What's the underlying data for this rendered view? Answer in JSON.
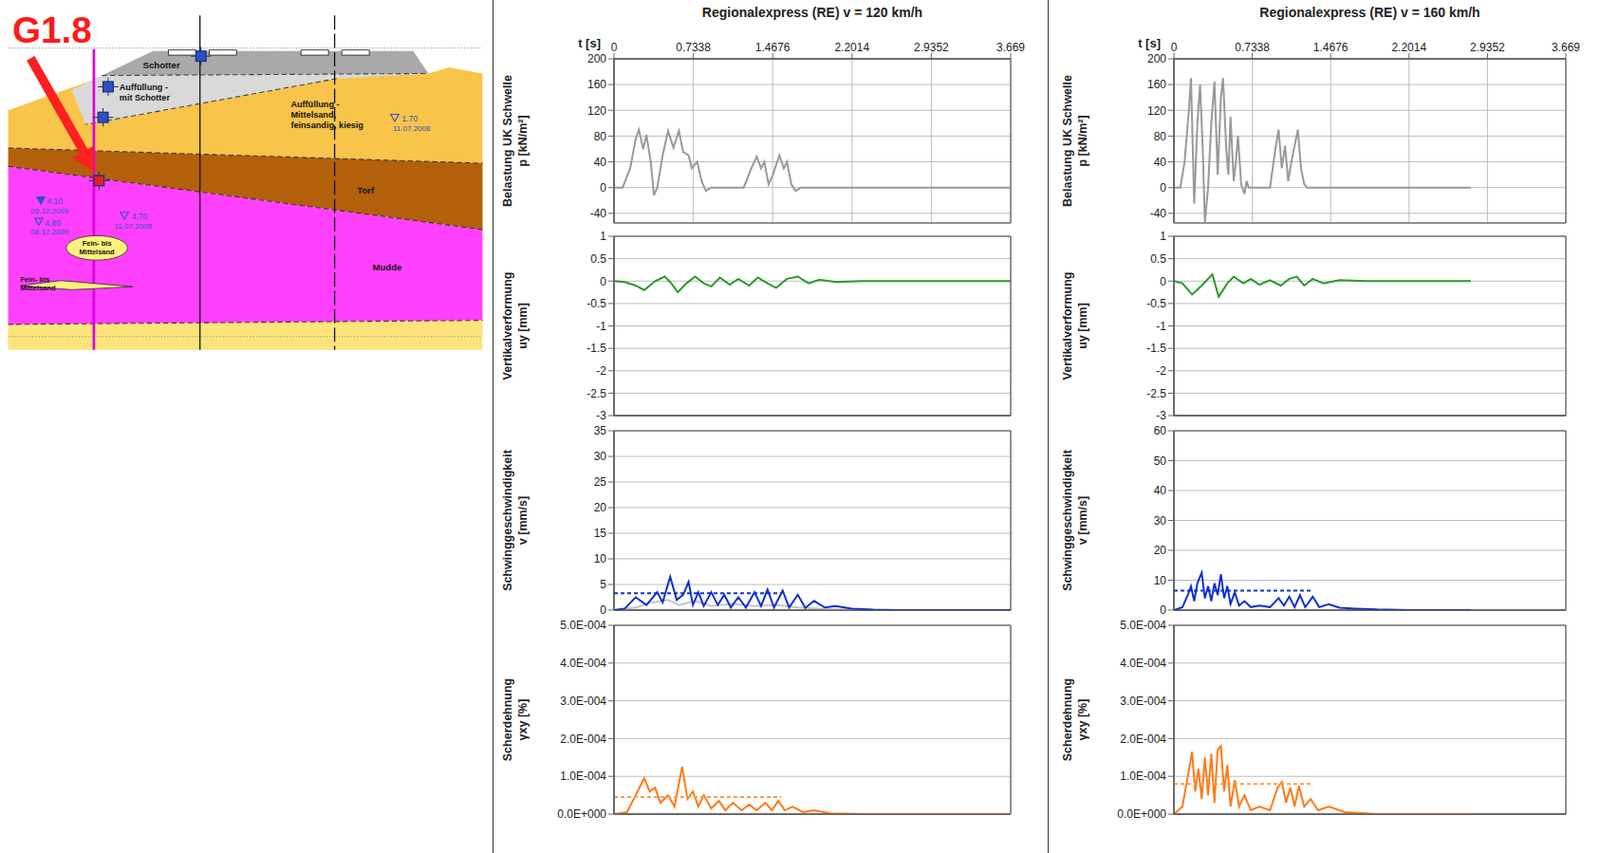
{
  "diagram": {
    "title": "G1.8",
    "layer_labels": [
      [
        "Schotter"
      ],
      [
        "Auffüllung -",
        "mit Schotter"
      ],
      [
        "Auffüllung -",
        "Mittelsand,",
        "feinsandig, kiesig"
      ],
      [
        "Torf"
      ],
      [
        "Mudde"
      ],
      [
        "Fein- bis",
        "Mittelsand"
      ],
      [
        "Fein- bis",
        "Mittelsand"
      ]
    ],
    "water_levels": [
      {
        "level": "1.70",
        "date": "11.07.2008"
      },
      {
        "level": "4,10",
        "date": "09.12.2009"
      },
      {
        "level": "4,80",
        "date": "08.12.2009"
      },
      {
        "level": "4,70",
        "date": "11.07.2008"
      }
    ]
  },
  "chart_data": [
    {
      "type": "line",
      "title": "Regionalexpress (RE) v = 120 km/h",
      "xlabel": "t [s]",
      "ylabel": [
        "Belastung UK Schwelle",
        "p [kN/m²]"
      ],
      "xlim": [
        0,
        3.669
      ],
      "xticks": [
        0,
        0.7338,
        1.4676,
        2.2014,
        2.9352,
        3.669
      ],
      "ylim": [
        -55,
        200
      ],
      "yticks": [
        -40,
        0,
        40,
        80,
        120,
        160,
        200
      ],
      "grid": true,
      "tick_labels": true,
      "series": [
        {
          "color": "#999999",
          "line_style": "solid",
          "x": [
            0,
            0.08,
            0.15,
            0.2,
            0.23,
            0.27,
            0.3,
            0.34,
            0.37,
            0.4,
            0.45,
            0.5,
            0.55,
            0.6,
            0.64,
            0.69,
            0.72,
            0.77,
            0.81,
            0.85,
            0.9,
            1.2,
            1.27,
            1.32,
            1.36,
            1.39,
            1.43,
            1.47,
            1.53,
            1.57,
            1.6,
            1.64,
            1.68,
            1.73,
            3.669
          ],
          "values": [
            0,
            0,
            30,
            75,
            90,
            60,
            82,
            40,
            -12,
            0,
            50,
            88,
            62,
            88,
            55,
            50,
            30,
            40,
            10,
            -5,
            0,
            0,
            30,
            48,
            30,
            40,
            5,
            20,
            50,
            30,
            40,
            5,
            -5,
            0,
            0
          ]
        }
      ]
    },
    {
      "type": "line",
      "ylabel": [
        "Vertikalverformung",
        "uy [mm]"
      ],
      "xlim": [
        0,
        3.669
      ],
      "xticks": [
        0,
        0.7338,
        1.4676,
        2.2014,
        2.9352,
        3.669
      ],
      "ylim": [
        -3,
        1
      ],
      "yticks": [
        -3,
        -2.5,
        -2,
        -1.5,
        -1,
        -0.5,
        0,
        0.5,
        1
      ],
      "grid": true,
      "tick_labels": "y",
      "series": [
        {
          "color": "#2a9a2a",
          "line_style": "solid",
          "x": [
            0,
            0.1,
            0.2,
            0.28,
            0.38,
            0.47,
            0.53,
            0.59,
            0.67,
            0.75,
            0.83,
            0.9,
            0.98,
            1.07,
            1.15,
            1.25,
            1.33,
            1.42,
            1.5,
            1.6,
            1.7,
            1.8,
            1.9,
            2.05,
            2.3,
            3.669
          ],
          "values": [
            0,
            -0.02,
            -0.1,
            -0.2,
            0,
            0.1,
            -0.05,
            -0.25,
            -0.05,
            0.1,
            -0.05,
            -0.12,
            0.08,
            -0.08,
            0.05,
            -0.1,
            0.08,
            -0.05,
            -0.15,
            0.05,
            0.1,
            -0.05,
            0.03,
            -0.02,
            0,
            0
          ]
        }
      ]
    },
    {
      "type": "line",
      "ylabel": [
        "Schwinggeschwindigkeit",
        "v [mm/s]"
      ],
      "xlim": [
        0,
        3.669
      ],
      "xticks": [
        0,
        0.7338,
        1.4676,
        2.2014,
        2.9352,
        3.669
      ],
      "ylim": [
        0,
        35
      ],
      "yticks": [
        0,
        5,
        10,
        15,
        20,
        25,
        30,
        35
      ],
      "grid": true,
      "tick_labels": "y",
      "series": [
        {
          "color": "#c4c4c4",
          "line_style": "solid",
          "x": [
            0,
            0.2,
            0.35,
            0.5,
            0.6,
            0.75,
            0.9,
            1.1,
            1.3,
            1.5,
            1.7,
            2.0,
            2.3,
            3.669
          ],
          "values": [
            0,
            0.5,
            1.5,
            2,
            1,
            1.8,
            0.8,
            1.2,
            0.8,
            1,
            0.5,
            0.2,
            0,
            0
          ]
        },
        {
          "color": "#1030d0",
          "line_style": "solid",
          "x": [
            0,
            0.1,
            0.2,
            0.3,
            0.4,
            0.45,
            0.52,
            0.58,
            0.64,
            0.69,
            0.73,
            0.78,
            0.83,
            0.9,
            0.96,
            1.02,
            1.08,
            1.15,
            1.22,
            1.3,
            1.36,
            1.42,
            1.48,
            1.56,
            1.62,
            1.7,
            1.77,
            1.85,
            1.95,
            2.05,
            2.2,
            2.4,
            2.6,
            3.669
          ],
          "values": [
            0,
            0.3,
            2.5,
            1,
            3.5,
            1.5,
            6.5,
            2,
            3,
            5.5,
            1,
            3.5,
            0.8,
            3.5,
            1,
            3,
            0.5,
            2.5,
            0.5,
            3.5,
            0.8,
            4,
            0.5,
            3.8,
            0.5,
            3,
            0.4,
            1.8,
            0.5,
            0.8,
            0.3,
            0.1,
            0,
            0
          ]
        },
        {
          "color": "#1030d0",
          "line_style": "dashed",
          "x": [
            0,
            1.55
          ],
          "values": [
            3.3,
            3.3
          ]
        }
      ]
    },
    {
      "type": "line",
      "ylabel": [
        "Scherdehnung",
        "γxy [%]"
      ],
      "xlim": [
        0,
        3.669
      ],
      "xticks": [
        0,
        0.7338,
        1.4676,
        2.2014,
        2.9352,
        3.669
      ],
      "ylim": [
        0,
        0.0005
      ],
      "yticks": [
        {
          "value": 0,
          "label": "0.0E+000"
        },
        {
          "value": 0.0001,
          "label": "1.0E-004"
        },
        {
          "value": 0.0002,
          "label": "2.0E-004"
        },
        {
          "value": 0.0003,
          "label": "3.0E-004"
        },
        {
          "value": 0.0004,
          "label": "4.0E-004"
        },
        {
          "value": 0.0005,
          "label": "5.0E-004"
        }
      ],
      "grid": true,
      "tick_labels": "y",
      "series": [
        {
          "color": "#ff7a1a",
          "line_style": "solid",
          "x": [
            0,
            0.12,
            0.2,
            0.28,
            0.33,
            0.38,
            0.43,
            0.5,
            0.56,
            0.63,
            0.68,
            0.73,
            0.78,
            0.83,
            0.9,
            0.97,
            1.03,
            1.1,
            1.18,
            1.25,
            1.32,
            1.4,
            1.46,
            1.52,
            1.58,
            1.65,
            1.75,
            1.85,
            2.0,
            2.3,
            3.669
          ],
          "values": [
            0,
            5e-06,
            5e-05,
            9.5e-05,
            6e-05,
            7e-05,
            3e-05,
            5e-05,
            2e-05,
            0.000125,
            4e-05,
            6e-05,
            2e-05,
            5e-05,
            1.5e-05,
            3.5e-05,
            1e-05,
            3e-05,
            1e-05,
            2.5e-05,
            1e-05,
            3e-05,
            1e-05,
            3.5e-05,
            1e-05,
            2e-05,
            5e-06,
            1e-05,
            2e-06,
            0,
            0
          ]
        },
        {
          "color": "#f5a04a",
          "line_style": "dashed",
          "x": [
            0,
            1.55
          ],
          "values": [
            4.5e-05,
            4.5e-05
          ]
        }
      ]
    },
    {
      "type": "line",
      "title": "Regionalexpress (RE) v = 160 km/h",
      "xlabel": "t [s]",
      "ylabel": [
        "Belastung UK Schwelle",
        "p [kN/m²]"
      ],
      "xlim": [
        0,
        3.669
      ],
      "xticks": [
        0,
        0.7338,
        1.4676,
        2.2014,
        2.9352,
        3.669
      ],
      "ylim": [
        -55,
        200
      ],
      "yticks": [
        -40,
        0,
        40,
        80,
        120,
        160,
        200
      ],
      "grid": true,
      "tick_labels": true,
      "series": [
        {
          "color": "#999999",
          "line_style": "solid",
          "x": [
            0,
            0.06,
            0.1,
            0.14,
            0.16,
            0.19,
            0.22,
            0.245,
            0.27,
            0.29,
            0.32,
            0.35,
            0.38,
            0.41,
            0.44,
            0.46,
            0.49,
            0.51,
            0.53,
            0.56,
            0.58,
            0.6,
            0.63,
            0.66,
            0.68,
            0.7,
            0.9,
            0.95,
            0.98,
            1.01,
            1.04,
            1.07,
            1.1,
            1.13,
            1.16,
            1.19,
            1.22,
            1.25,
            2.78
          ],
          "values": [
            0,
            0,
            40,
            120,
            170,
            -25,
            100,
            160,
            60,
            -55,
            0,
            100,
            165,
            20,
            140,
            170,
            60,
            20,
            110,
            10,
            40,
            80,
            5,
            -10,
            10,
            0,
            0,
            60,
            90,
            30,
            65,
            10,
            40,
            65,
            90,
            30,
            5,
            0,
            0
          ]
        }
      ]
    },
    {
      "type": "line",
      "ylabel": [
        "Vertikalverformung",
        "uy [mm]"
      ],
      "xlim": [
        0,
        3.669
      ],
      "xticks": [
        0,
        0.7338,
        1.4676,
        2.2014,
        2.9352,
        3.669
      ],
      "ylim": [
        -3,
        1
      ],
      "yticks": [
        -3,
        -2.5,
        -2,
        -1.5,
        -1,
        -0.5,
        0,
        0.5,
        1
      ],
      "grid": true,
      "tick_labels": "y",
      "series": [
        {
          "color": "#2a9a2a",
          "line_style": "solid",
          "x": [
            0,
            0.08,
            0.17,
            0.26,
            0.36,
            0.42,
            0.5,
            0.56,
            0.65,
            0.72,
            0.8,
            0.9,
            1.0,
            1.08,
            1.15,
            1.22,
            1.3,
            1.4,
            1.55,
            1.8,
            2.78
          ],
          "values": [
            0,
            -0.05,
            -0.3,
            -0.1,
            0.15,
            -0.35,
            -0.05,
            0.1,
            -0.05,
            0.05,
            -0.08,
            0.02,
            -0.1,
            0.05,
            0.1,
            -0.1,
            0.05,
            -0.05,
            0.02,
            0,
            0
          ]
        }
      ]
    },
    {
      "type": "line",
      "ylabel": [
        "Schwinggeschwindigkeit",
        "v [mm/s]"
      ],
      "xlim": [
        0,
        3.669
      ],
      "xticks": [
        0,
        0.7338,
        1.4676,
        2.2014,
        2.9352,
        3.669
      ],
      "ylim": [
        0,
        60
      ],
      "yticks": [
        0,
        10,
        20,
        30,
        40,
        50,
        60
      ],
      "grid": true,
      "tick_labels": "y",
      "series": [
        {
          "color": "#1030d0",
          "line_style": "solid",
          "x": [
            0,
            0.08,
            0.13,
            0.16,
            0.19,
            0.22,
            0.26,
            0.29,
            0.32,
            0.35,
            0.38,
            0.41,
            0.44,
            0.47,
            0.5,
            0.53,
            0.57,
            0.61,
            0.66,
            0.72,
            0.8,
            0.9,
            0.98,
            1.03,
            1.08,
            1.13,
            1.18,
            1.23,
            1.3,
            1.36,
            1.45,
            1.55,
            1.7,
            1.9,
            2.2,
            2.78
          ],
          "values": [
            0,
            1,
            5,
            8,
            3,
            9,
            12.5,
            4,
            8,
            3,
            9,
            5,
            12,
            4,
            8,
            2,
            6,
            1.5,
            3,
            1,
            1.5,
            1,
            4,
            1.5,
            4.5,
            1,
            5,
            1,
            4.5,
            1,
            2,
            0.8,
            0.5,
            0.2,
            0,
            0
          ]
        },
        {
          "color": "#1030d0",
          "line_style": "dashed",
          "x": [
            0,
            1.3
          ],
          "values": [
            6.5,
            6.5
          ]
        }
      ]
    },
    {
      "type": "line",
      "ylabel": [
        "Scherdehnung",
        "γxy [%]"
      ],
      "xlim": [
        0,
        3.669
      ],
      "xticks": [
        0,
        0.7338,
        1.4676,
        2.2014,
        2.9352,
        3.669
      ],
      "ylim": [
        0,
        0.0005
      ],
      "yticks": [
        {
          "value": 0,
          "label": "0.0E+000"
        },
        {
          "value": 0.0001,
          "label": "1.0E-004"
        },
        {
          "value": 0.0002,
          "label": "2.0E-004"
        },
        {
          "value": 0.0003,
          "label": "3.0E-004"
        },
        {
          "value": 0.0004,
          "label": "4.0E-004"
        },
        {
          "value": 0.0005,
          "label": "5.0E-004"
        }
      ],
      "grid": true,
      "tick_labels": "y",
      "series": [
        {
          "color": "#ff7a1a",
          "line_style": "solid",
          "x": [
            0,
            0.08,
            0.13,
            0.17,
            0.2,
            0.23,
            0.26,
            0.29,
            0.32,
            0.35,
            0.38,
            0.41,
            0.44,
            0.47,
            0.5,
            0.53,
            0.57,
            0.61,
            0.66,
            0.72,
            0.8,
            0.9,
            0.97,
            1.01,
            1.05,
            1.09,
            1.13,
            1.17,
            1.22,
            1.28,
            1.35,
            1.45,
            1.6,
            1.9,
            2.78
          ],
          "values": [
            0,
            2e-05,
            0.0001,
            0.000165,
            6e-05,
            0.00012,
            4e-05,
            0.00015,
            5e-05,
            0.00016,
            3e-05,
            0.00017,
            0.00018,
            6e-05,
            0.00013,
            2e-05,
            9e-05,
            2e-05,
            5e-05,
            1e-05,
            2e-05,
            1e-05,
            7e-05,
            8.5e-05,
            3e-05,
            7e-05,
            2e-05,
            7.5e-05,
            2e-05,
            4e-05,
            1e-05,
            2e-05,
            5e-06,
            0,
            0
          ]
        },
        {
          "color": "#f5a04a",
          "line_style": "dashed",
          "x": [
            0,
            1.3
          ],
          "values": [
            8e-05,
            8e-05
          ]
        }
      ]
    }
  ]
}
